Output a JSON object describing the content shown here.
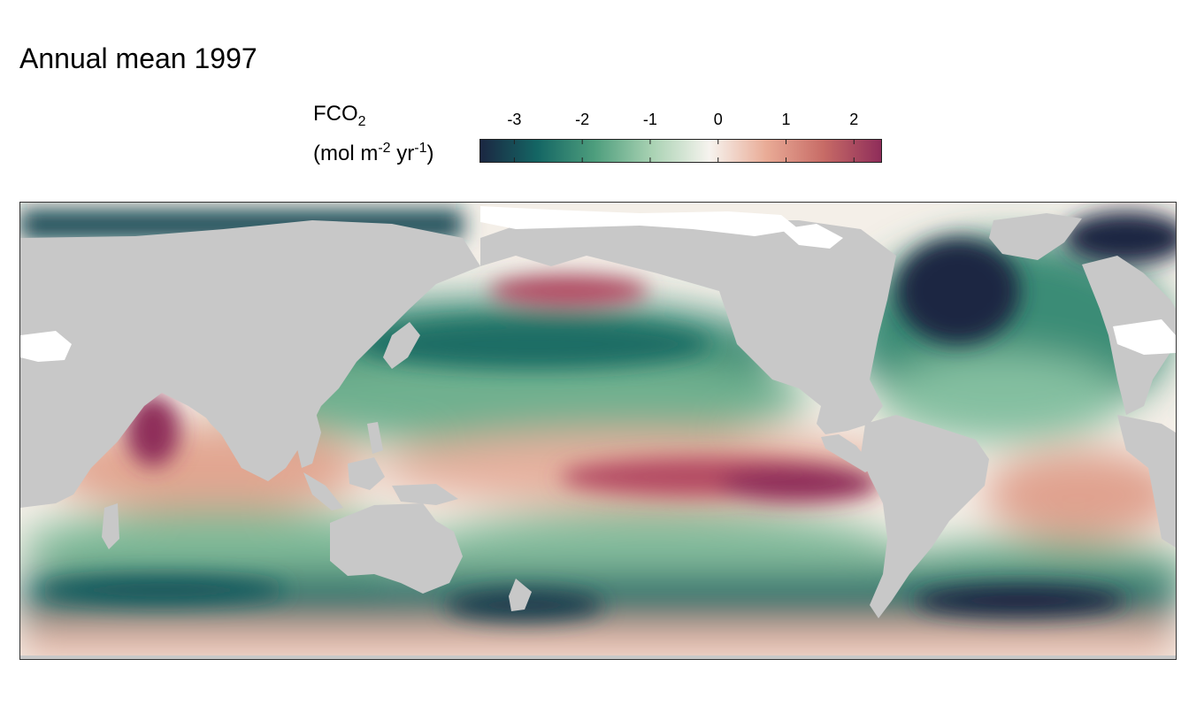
{
  "title": "Annual mean 1997",
  "legend": {
    "variable": "FCO",
    "variable_sub": "2",
    "unit_open": "(mol m",
    "unit_exp1": "-2",
    "unit_mid": " yr",
    "unit_exp2": "-1",
    "unit_close": ")",
    "ticks": [
      {
        "value": -3,
        "label": "-3"
      },
      {
        "value": -2,
        "label": "-2"
      },
      {
        "value": -1,
        "label": "-1"
      },
      {
        "value": 0,
        "label": "0"
      },
      {
        "value": 1,
        "label": "1"
      },
      {
        "value": 2,
        "label": "2"
      }
    ],
    "range": [
      -3.5,
      2.4
    ],
    "colors": [
      "#1b2742",
      "#146664",
      "#4e9e7d",
      "#a9d2b3",
      "#f6f3ee",
      "#e9ab96",
      "#c76b66",
      "#8f2d5a"
    ]
  },
  "land_color": "#c8c8c8",
  "ice_color": "#ffffff"
}
